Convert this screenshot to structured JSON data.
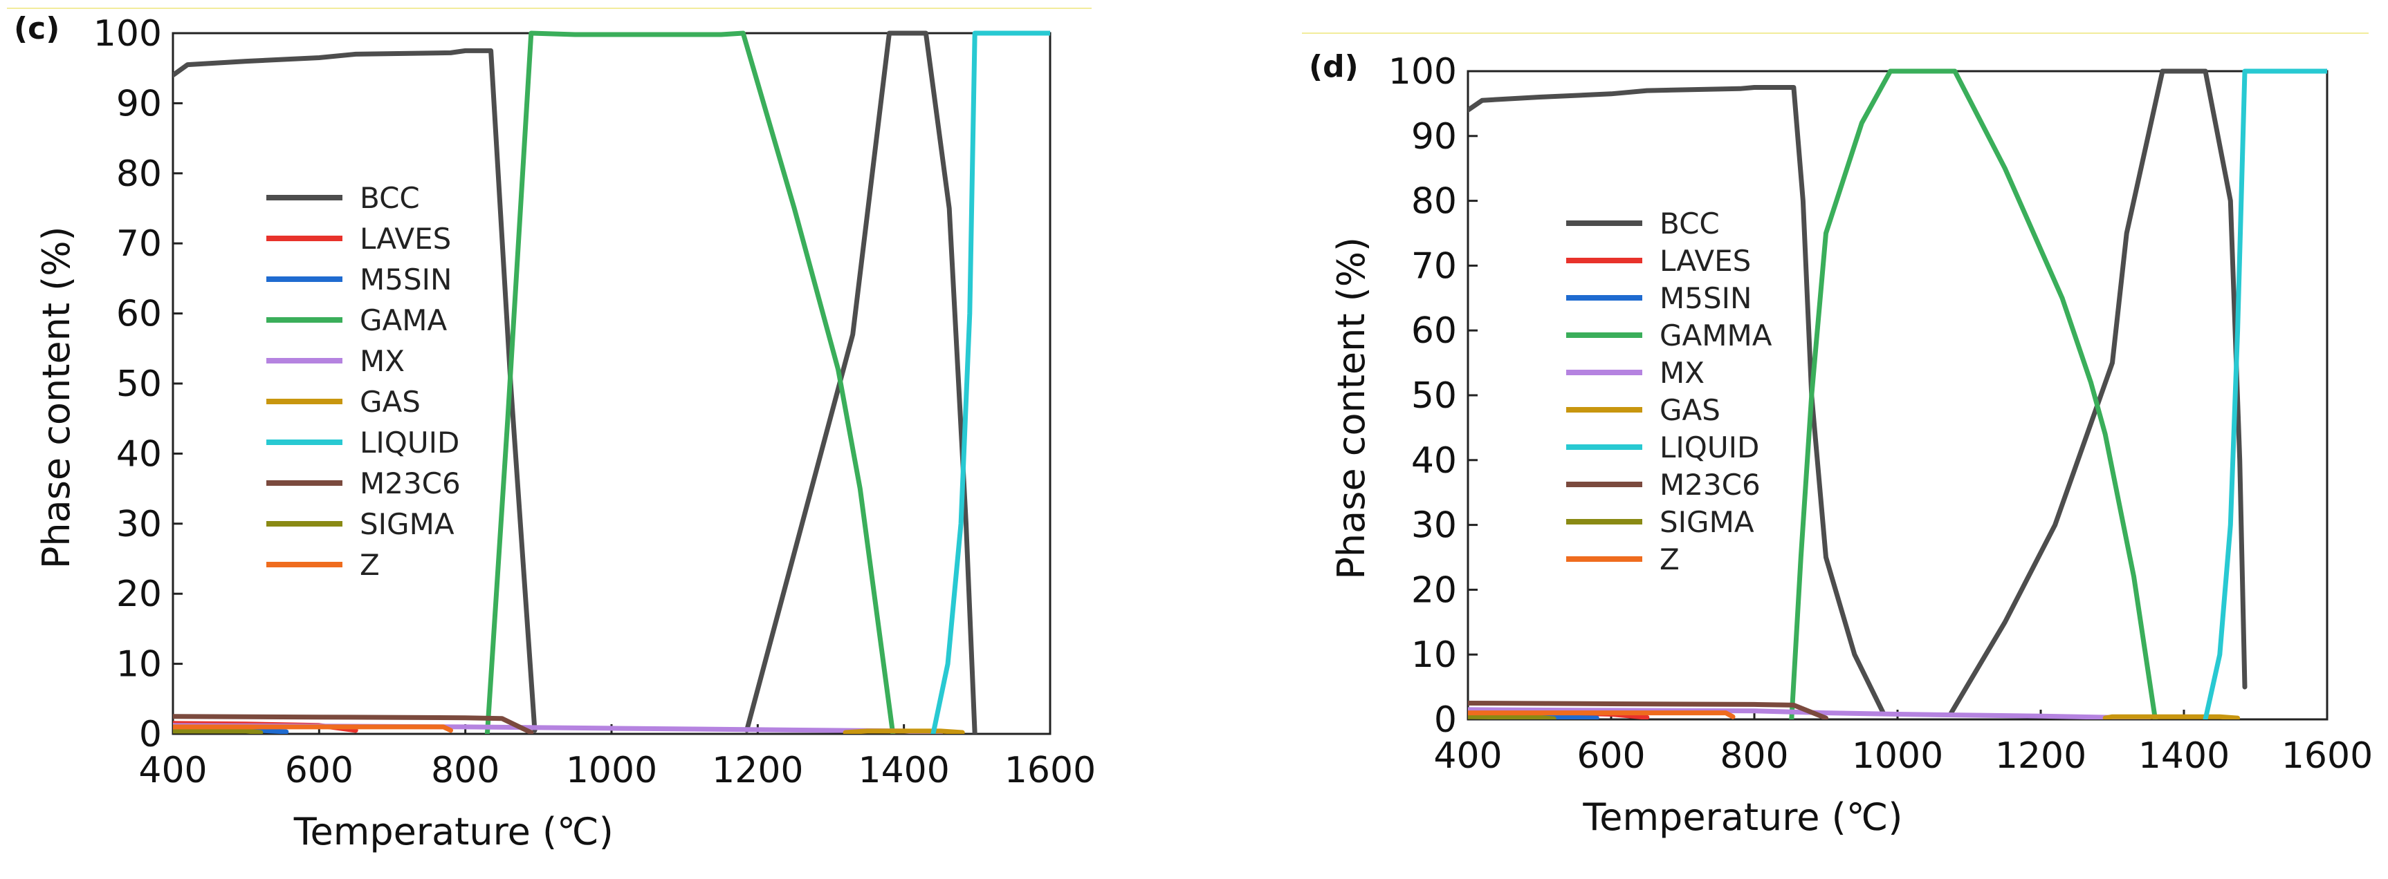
{
  "chart_data": [
    {
      "type": "line",
      "panel_label": "(c)",
      "xlabel": "Temperature (℃)",
      "ylabel": "Phase content (%)",
      "xlim": [
        400,
        1600
      ],
      "ylim": [
        0,
        100
      ],
      "xticks": [
        400,
        600,
        800,
        1000,
        1200,
        1400,
        1600
      ],
      "yticks": [
        0,
        10,
        20,
        30,
        40,
        50,
        60,
        70,
        80,
        90,
        100
      ],
      "legend_position": "left-middle",
      "series": [
        {
          "name": "BCC",
          "color": "#4d4d4d",
          "points": [
            [
              400,
              94
            ],
            [
              420,
              95.5
            ],
            [
              500,
              96
            ],
            [
              600,
              96.5
            ],
            [
              650,
              97
            ],
            [
              780,
              97.2
            ],
            [
              800,
              97.5
            ],
            [
              835,
              97.5
            ],
            [
              862,
              50
            ],
            [
              895,
              0.5
            ],
            [
              null,
              null
            ],
            [
              1185,
              0.5
            ],
            [
              1330,
              57
            ],
            [
              1380,
              100
            ],
            [
              1430,
              100
            ],
            [
              1462,
              75
            ],
            [
              1485,
              30
            ],
            [
              1497,
              0
            ]
          ]
        },
        {
          "name": "LAVES",
          "color": "#e8322b",
          "points": [
            [
              400,
              1.5
            ],
            [
              500,
              1.4
            ],
            [
              600,
              1.2
            ],
            [
              650,
              0.5
            ]
          ]
        },
        {
          "name": "M5SIN",
          "color": "#1f6bd0",
          "points": [
            [
              400,
              0.8
            ],
            [
              500,
              0.6
            ],
            [
              555,
              0.3
            ]
          ]
        },
        {
          "name": "GAMA",
          "color": "#3aae5a",
          "points": [
            [
              830,
              0
            ],
            [
              858,
              45
            ],
            [
              890,
              100
            ],
            [
              950,
              99.8
            ],
            [
              1150,
              99.8
            ],
            [
              1180,
              100
            ],
            [
              1250,
              75
            ],
            [
              1310,
              52
            ],
            [
              1340,
              35
            ],
            [
              1385,
              0
            ]
          ]
        },
        {
          "name": "MX",
          "color": "#b583e0",
          "points": [
            [
              400,
              1.2
            ],
            [
              600,
              1.1
            ],
            [
              800,
              1
            ],
            [
              900,
              0.9
            ],
            [
              1000,
              0.8
            ],
            [
              1200,
              0.6
            ],
            [
              1300,
              0.5
            ],
            [
              1400,
              0.4
            ],
            [
              1450,
              0
            ]
          ]
        },
        {
          "name": "GAS",
          "color": "#c8960f",
          "points": [
            [
              1320,
              0.2
            ],
            [
              1350,
              0.4
            ],
            [
              1450,
              0.4
            ],
            [
              1480,
              0.2
            ]
          ]
        },
        {
          "name": "LIQUID",
          "color": "#28c9d2",
          "points": [
            [
              1440,
              0
            ],
            [
              1460,
              10
            ],
            [
              1478,
              30
            ],
            [
              1490,
              60
            ],
            [
              1497,
              100
            ],
            [
              1600,
              100
            ]
          ]
        },
        {
          "name": "M23C6",
          "color": "#7b4a3e",
          "points": [
            [
              400,
              2.5
            ],
            [
              600,
              2.4
            ],
            [
              800,
              2.3
            ],
            [
              850,
              2.2
            ],
            [
              890,
              0.2
            ]
          ]
        },
        {
          "name": "SIGMA",
          "color": "#8a8a14",
          "points": [
            [
              400,
              0.4
            ],
            [
              500,
              0.4
            ],
            [
              520,
              0.2
            ]
          ]
        },
        {
          "name": "Z",
          "color": "#ef6c1e",
          "points": [
            [
              400,
              1
            ],
            [
              600,
              1
            ],
            [
              770,
              1
            ],
            [
              780,
              0.5
            ]
          ]
        }
      ]
    },
    {
      "type": "line",
      "panel_label": "(d)",
      "xlabel": "Temperature (℃)",
      "ylabel": "Phase content (%)",
      "xlim": [
        400,
        1600
      ],
      "ylim": [
        0,
        100
      ],
      "xticks": [
        400,
        600,
        800,
        1000,
        1200,
        1400,
        1600
      ],
      "yticks": [
        0,
        10,
        20,
        30,
        40,
        50,
        60,
        70,
        80,
        90,
        100
      ],
      "legend_position": "left-middle",
      "series": [
        {
          "name": "BCC",
          "color": "#4d4d4d",
          "points": [
            [
              400,
              94
            ],
            [
              420,
              95.5
            ],
            [
              500,
              96
            ],
            [
              600,
              96.5
            ],
            [
              650,
              97
            ],
            [
              780,
              97.3
            ],
            [
              800,
              97.5
            ],
            [
              855,
              97.5
            ],
            [
              868,
              80
            ],
            [
              880,
              50
            ],
            [
              900,
              25
            ],
            [
              940,
              10
            ],
            [
              980,
              1
            ],
            [
              null,
              null
            ],
            [
              1075,
              1
            ],
            [
              1150,
              15
            ],
            [
              1220,
              30
            ],
            [
              1300,
              55
            ],
            [
              1320,
              75
            ],
            [
              1370,
              100
            ],
            [
              1430,
              100
            ],
            [
              1465,
              80
            ],
            [
              1478,
              40
            ],
            [
              1485,
              5
            ]
          ]
        },
        {
          "name": "LAVES",
          "color": "#e8322b",
          "points": [
            [
              400,
              1.2
            ],
            [
              500,
              1.1
            ],
            [
              600,
              0.8
            ],
            [
              650,
              0.3
            ]
          ]
        },
        {
          "name": "M5SIN",
          "color": "#1f6bd0",
          "points": [
            [
              400,
              0.6
            ],
            [
              500,
              0.4
            ],
            [
              580,
              0.2
            ]
          ]
        },
        {
          "name": "GAMMA",
          "color": "#3aae5a",
          "points": [
            [
              852,
              0
            ],
            [
              865,
              25
            ],
            [
              880,
              50
            ],
            [
              900,
              75
            ],
            [
              950,
              92
            ],
            [
              990,
              100
            ],
            [
              1080,
              100
            ],
            [
              1150,
              85
            ],
            [
              1230,
              65
            ],
            [
              1270,
              52
            ],
            [
              1290,
              44
            ],
            [
              1330,
              22
            ],
            [
              1360,
              0
            ]
          ]
        },
        {
          "name": "MX",
          "color": "#b583e0",
          "points": [
            [
              400,
              1.5
            ],
            [
              600,
              1.4
            ],
            [
              800,
              1.3
            ],
            [
              900,
              1
            ],
            [
              1000,
              0.8
            ],
            [
              1200,
              0.5
            ],
            [
              1300,
              0.3
            ],
            [
              1350,
              0
            ]
          ]
        },
        {
          "name": "GAS",
          "color": "#c8960f",
          "points": [
            [
              1290,
              0.2
            ],
            [
              1300,
              0.4
            ],
            [
              1450,
              0.4
            ],
            [
              1475,
              0.2
            ]
          ]
        },
        {
          "name": "LIQUID",
          "color": "#28c9d2",
          "points": [
            [
              1430,
              0
            ],
            [
              1450,
              10
            ],
            [
              1465,
              30
            ],
            [
              1475,
              60
            ],
            [
              1485,
              100
            ],
            [
              1600,
              100
            ]
          ]
        },
        {
          "name": "M23C6",
          "color": "#7b4a3e",
          "points": [
            [
              400,
              2.5
            ],
            [
              600,
              2.4
            ],
            [
              800,
              2.3
            ],
            [
              855,
              2.2
            ],
            [
              900,
              0.2
            ]
          ]
        },
        {
          "name": "SIGMA",
          "color": "#8a8a14",
          "points": [
            [
              400,
              0.4
            ],
            [
              500,
              0.3
            ],
            [
              520,
              0.1
            ]
          ]
        },
        {
          "name": "Z",
          "color": "#ef6c1e",
          "points": [
            [
              400,
              1
            ],
            [
              600,
              1
            ],
            [
              760,
              1
            ],
            [
              770,
              0.4
            ]
          ]
        }
      ]
    }
  ]
}
